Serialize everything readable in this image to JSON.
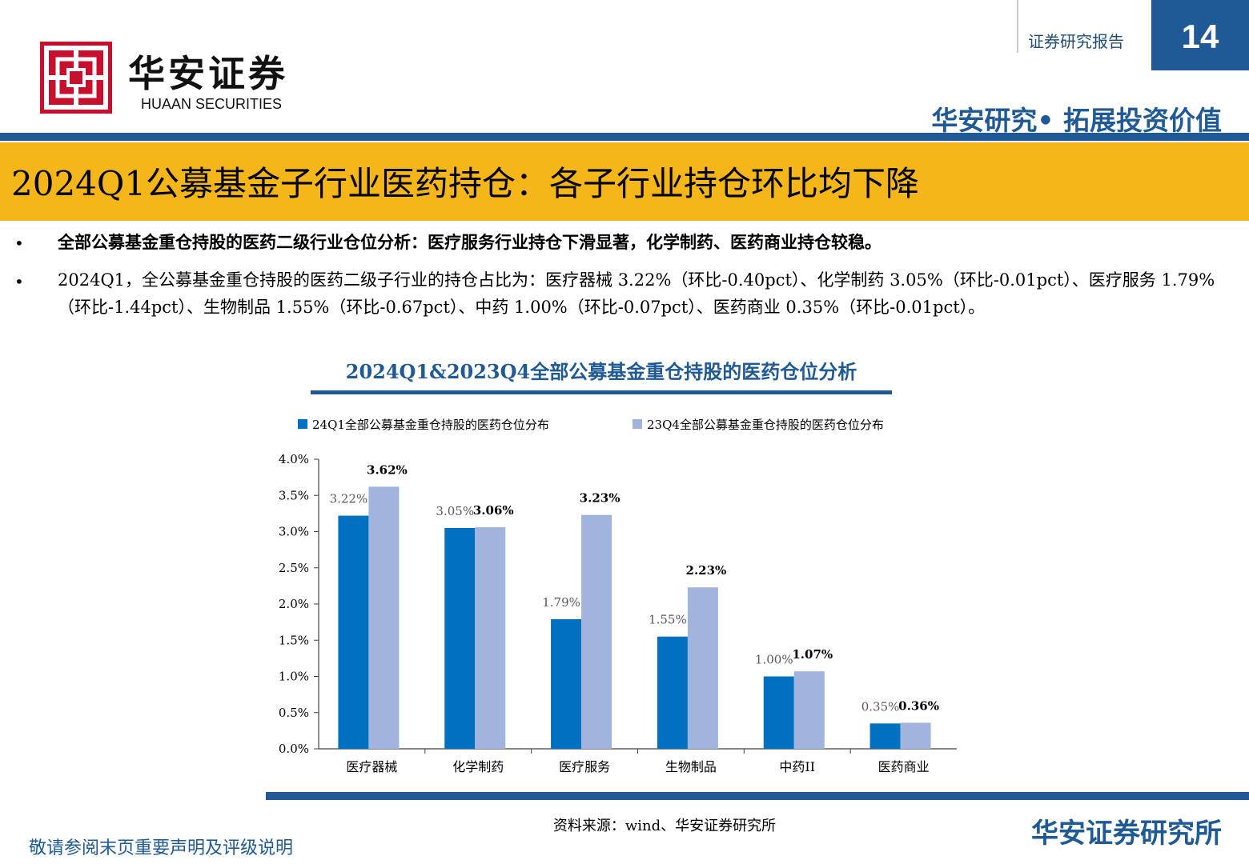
{
  "header": {
    "logo_cn": "华安证券",
    "logo_en": "HUAAN SECURITIES",
    "report_label": "证券研究报告",
    "page_number": "14",
    "slogan": "华安研究• 拓展投资价值",
    "brand_color": "#1f5a96",
    "accent_color": "#f4b619",
    "logo_color": "#c8102e"
  },
  "title": "2024Q1公募基金子行业医药持仓：各子行业持仓环比均下降",
  "bullets": [
    {
      "marker": "•",
      "text": "全部公募基金重仓持股的医药二级行业仓位分析：医疗服务行业持仓下滑显著，化学制药、医药商业持仓较稳。"
    },
    {
      "marker": "•",
      "text": "2024Q1，全公募基金重仓持股的医药二级子行业的持仓占比为：医疗器械 3.22%（环比-0.40pct）、化学制药 3.05%（环比-0.01pct）、医疗服务 1.79%（环比-1.44pct）、生物制品 1.55%（环比-0.67pct）、中药 1.00%（环比-0.07pct）、医药商业 0.35%（环比-0.01pct）。"
    }
  ],
  "chart_data": {
    "type": "bar",
    "title": "2024Q1&2023Q4全部公募基金重仓持股的医药仓位分析",
    "categories": [
      "医疗器械",
      "化学制药",
      "医疗服务",
      "生物制品",
      "中药II",
      "医药商业"
    ],
    "series": [
      {
        "name": "24Q1全部公募基金重仓持股的医药仓位分布",
        "values": [
          3.22,
          3.05,
          1.79,
          1.55,
          1.0,
          0.35
        ],
        "labels": [
          "3.22%",
          "3.05%",
          "1.79%",
          "1.55%",
          "1.00%",
          "0.35%"
        ],
        "color": "#0070c0"
      },
      {
        "name": "23Q4全部公募基金重仓持股的医药仓位分布",
        "values": [
          3.62,
          3.06,
          3.23,
          2.23,
          1.07,
          0.36
        ],
        "labels": [
          "3.62%",
          "3.06%",
          "3.23%",
          "2.23%",
          "1.07%",
          "0.36%"
        ],
        "color": "#a0b4de"
      }
    ],
    "yticks": [
      "0.0%",
      "0.5%",
      "1.0%",
      "1.5%",
      "2.0%",
      "2.5%",
      "3.0%",
      "3.5%",
      "4.0%"
    ],
    "ylim": [
      0,
      4.0
    ],
    "legend": "top",
    "grid": false
  },
  "source": "资料来源：wind、华安证券研究所",
  "footer": {
    "disclaimer": "敬请参阅末页重要声明及评级说明",
    "institute": "华安证券研究所"
  }
}
